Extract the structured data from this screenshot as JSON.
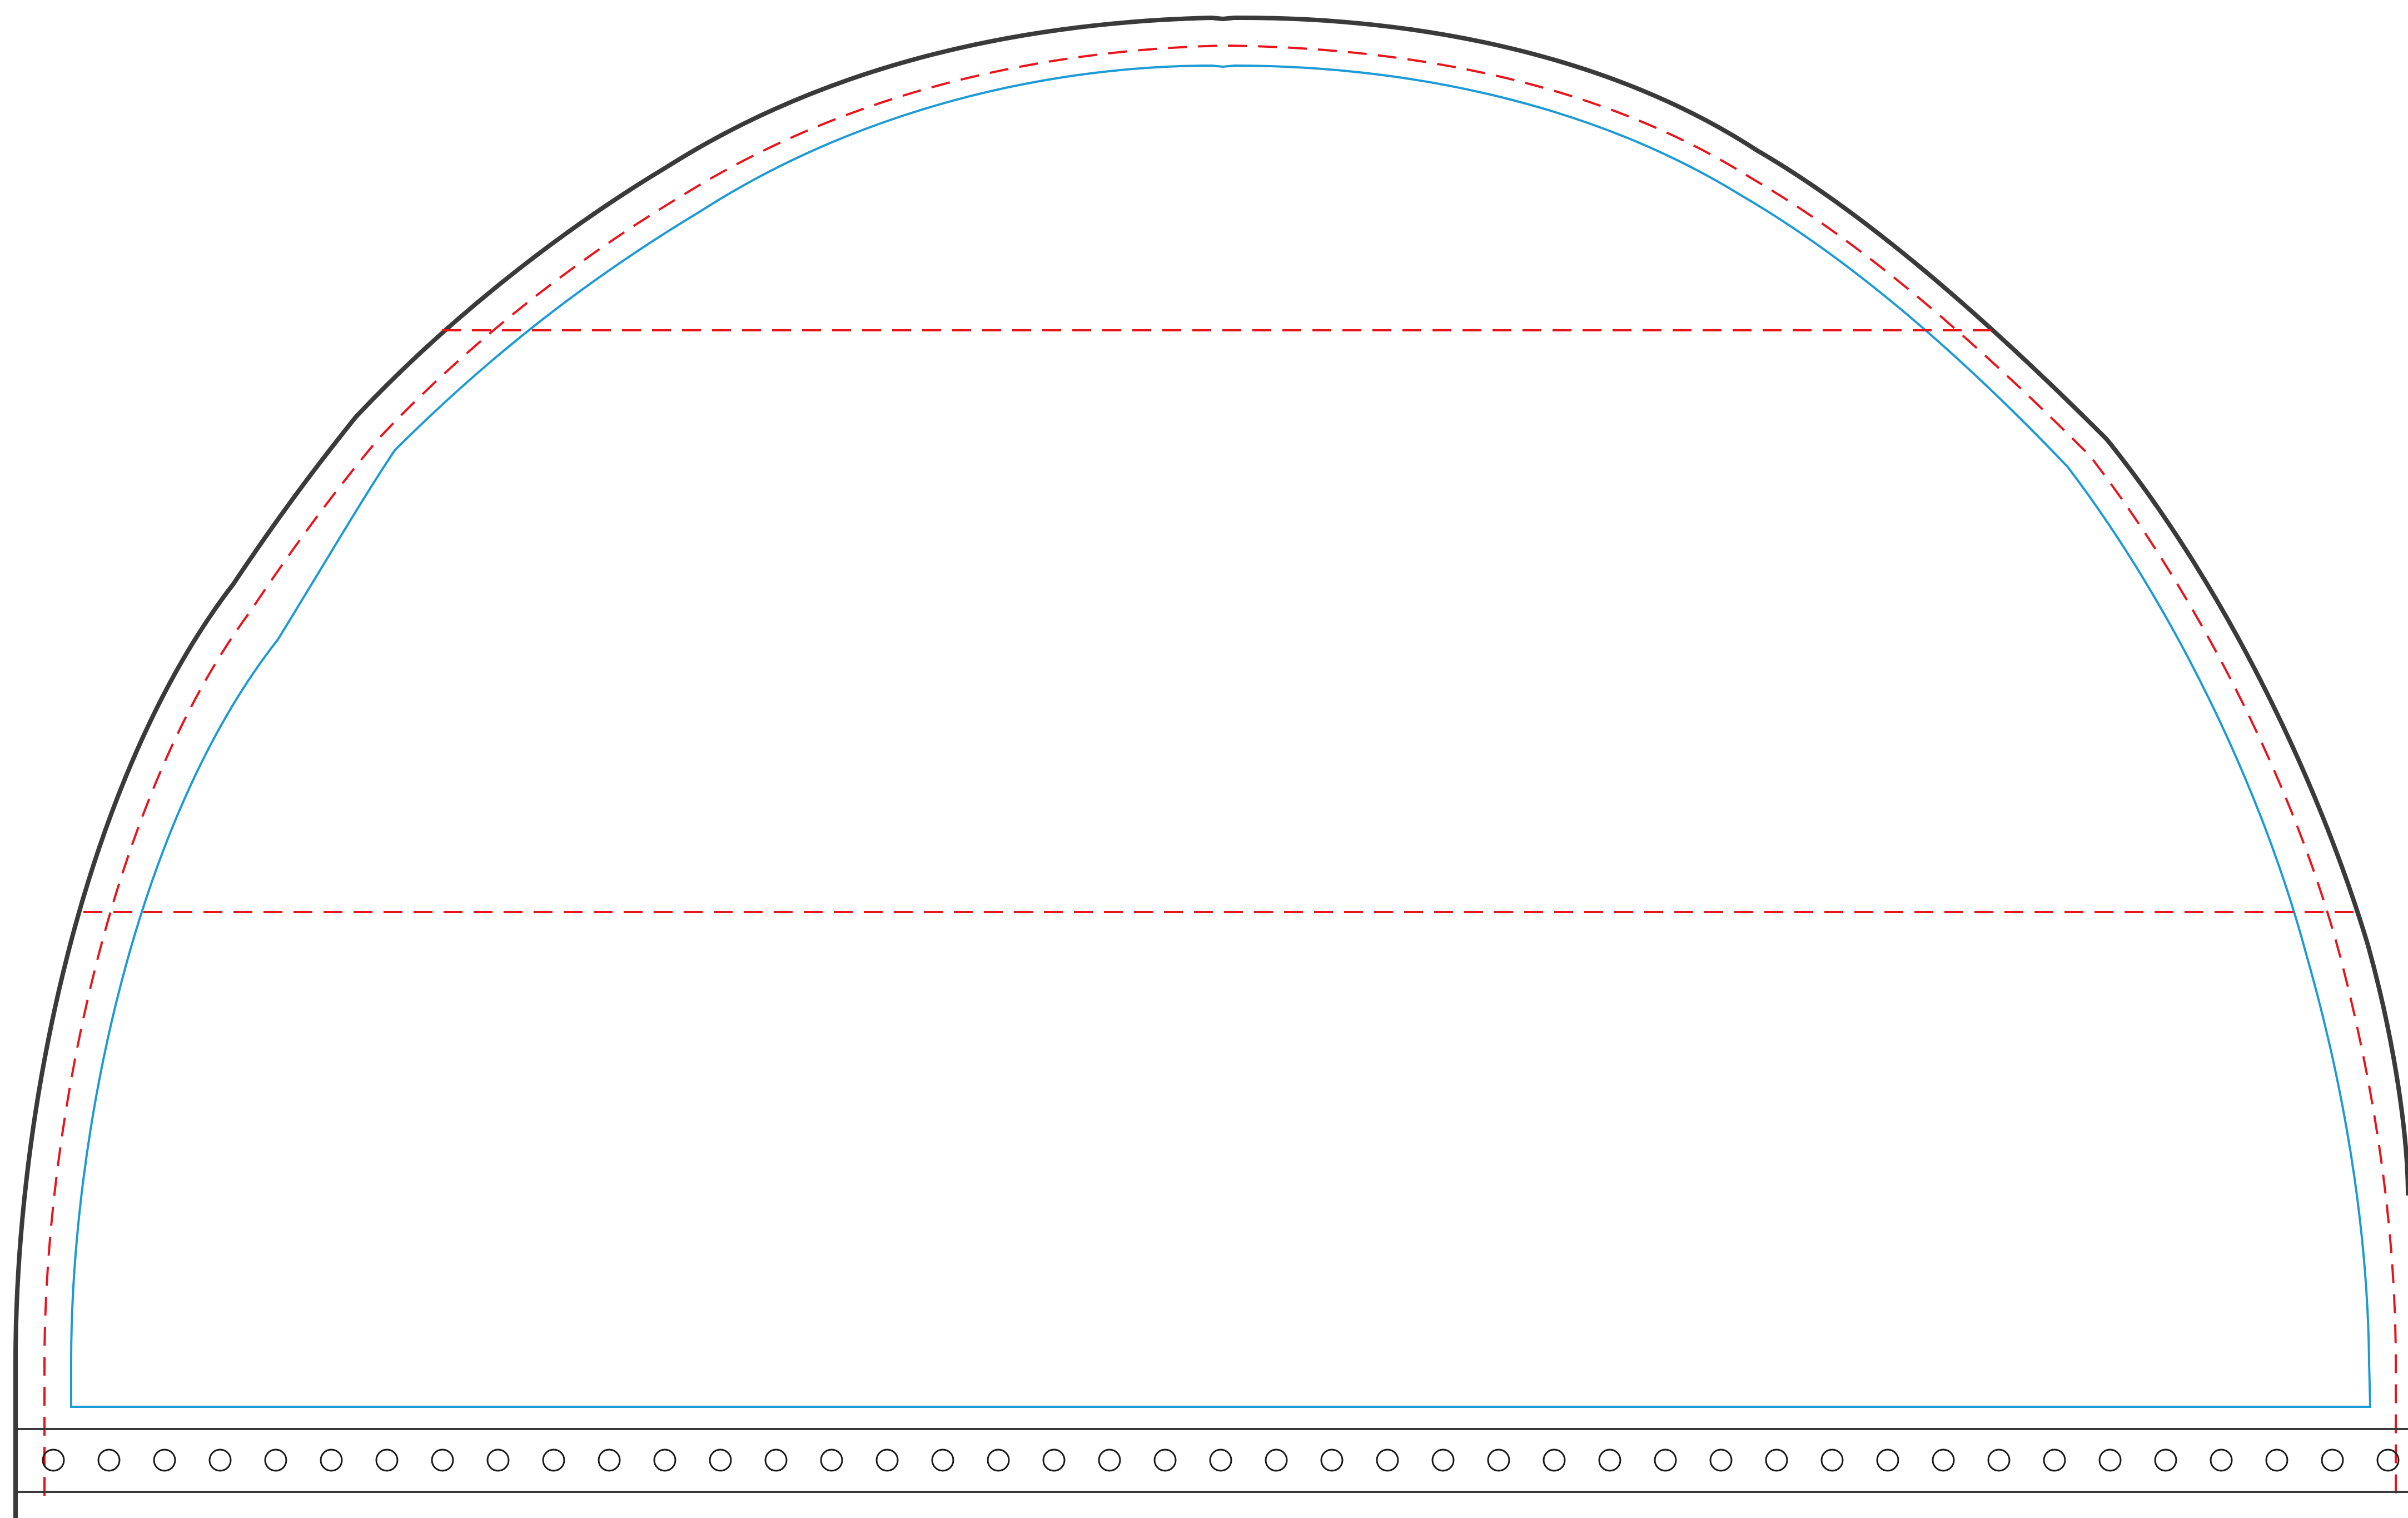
{
  "diagram": {
    "kind": "sewing-pattern-template",
    "visible_text": [],
    "line_styles": {
      "cut_line": {
        "color": "#3a3a3a",
        "style": "solid"
      },
      "seam_line": {
        "color": "#e8141c",
        "style": "dashed"
      },
      "inner_line": {
        "color": "#1b9ad6",
        "style": "solid"
      },
      "band_line": {
        "color": "#3a3a3a",
        "style": "solid"
      },
      "hole": {
        "color": "#1a1a1a",
        "style": "circle-outline"
      }
    },
    "elements": [
      "outer-cut-arch",
      "seam-allowance-arch",
      "inner-stitch-outline",
      "upper-fold-line",
      "lower-fold-line",
      "perforated-band"
    ],
    "hole_count": 43
  }
}
